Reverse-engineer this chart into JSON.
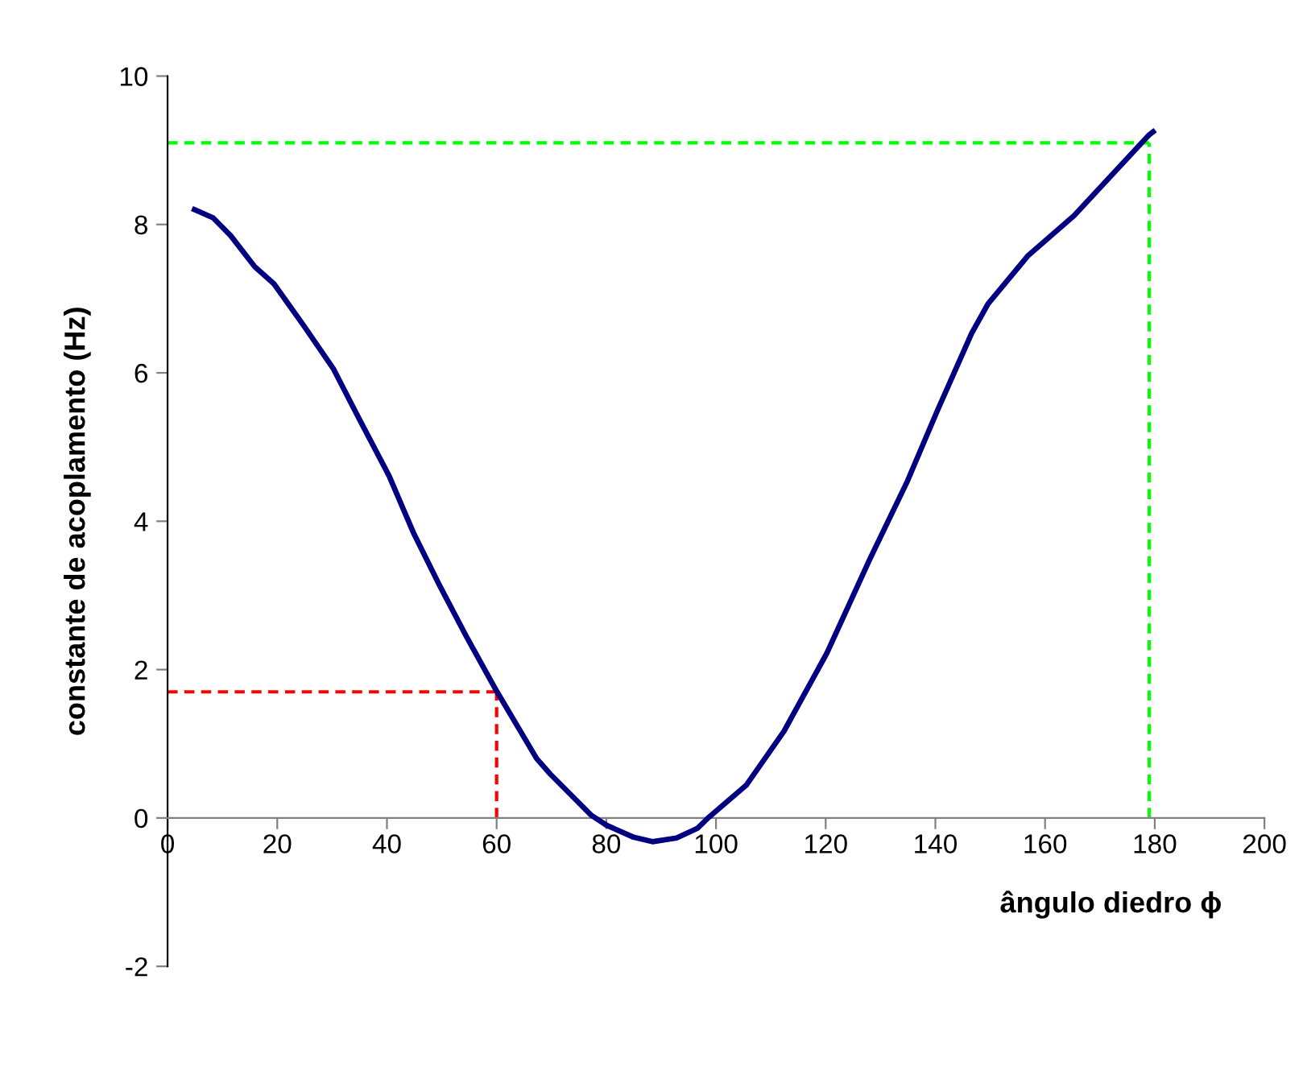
{
  "chart_data": {
    "type": "line",
    "xlabel": "ângulo diedro ϕ",
    "ylabel": "constante de acoplamento (Hz)",
    "xlim": [
      0,
      200
    ],
    "ylim": [
      -2,
      10
    ],
    "xticks": [
      0,
      20,
      40,
      60,
      80,
      100,
      120,
      140,
      160,
      180,
      200
    ],
    "yticks": [
      -2,
      0,
      2,
      4,
      6,
      8,
      10
    ],
    "grid": false,
    "legend": false,
    "marker": "none",
    "line_style": "solid",
    "series": [
      {
        "color": "#000080",
        "x": [
          4.9,
          8.3,
          11.5,
          15.9,
          19.4,
          24.8,
          30.2,
          35,
          40.4,
          44.8,
          49.7,
          54.6,
          60,
          67.3,
          69.8,
          77.2,
          80.1,
          85,
          88.4,
          92.8,
          96.6,
          98.7,
          105.5,
          112.4,
          120.2,
          128,
          134.9,
          140.3,
          146.6,
          149.6,
          156.9,
          165.3,
          179,
          179.7
        ],
        "values": [
          8.2,
          8.09,
          7.85,
          7.43,
          7.2,
          6.64,
          6.06,
          5.37,
          4.61,
          3.85,
          3.12,
          2.43,
          1.71,
          0.8,
          0.59,
          0.04,
          -0.1,
          -0.26,
          -0.32,
          -0.27,
          -0.14,
          0.01,
          0.44,
          1.17,
          2.22,
          3.48,
          4.54,
          5.48,
          6.53,
          6.93,
          7.58,
          8.12,
          9.21,
          9.25
        ]
      }
    ],
    "ref_lines": [
      {
        "axis": "y",
        "value": 1.7,
        "color": "#ff0000",
        "line_style": "dashed"
      },
      {
        "axis": "x",
        "value": 60,
        "color": "#ff0000",
        "line_style": "dashed"
      },
      {
        "axis": "y",
        "value": 9.1,
        "color": "#00ff00",
        "line_style": "dashed"
      },
      {
        "axis": "x",
        "value": 179,
        "color": "#00ff00",
        "line_style": "dashed"
      }
    ]
  }
}
